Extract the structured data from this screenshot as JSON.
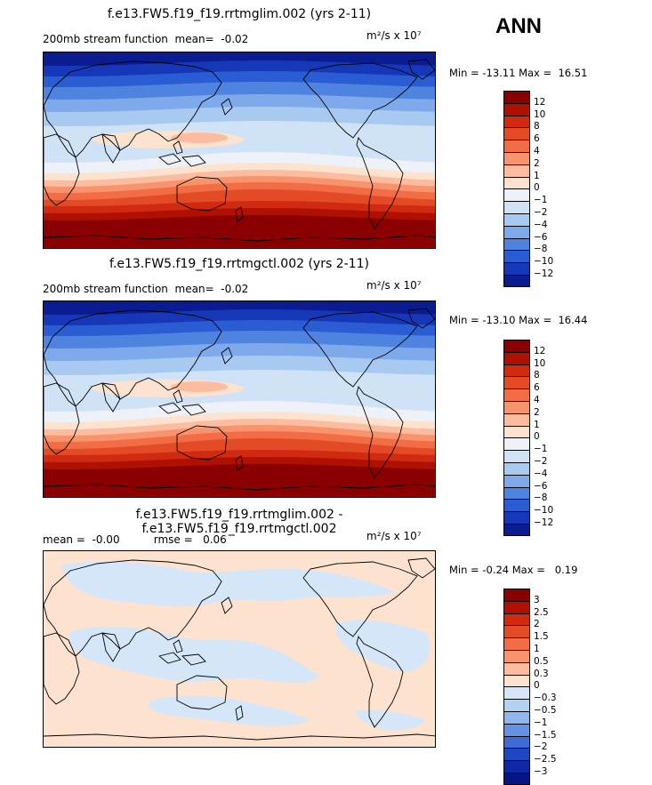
{
  "season": "ANN",
  "panels": [
    {
      "title": "f.e13.FW5.f19_f19.rrtmglim.002 (yrs 2-11)",
      "stat_left": "200mb stream function  mean=  -0.02",
      "units": "m²/s x 10⁷",
      "minmax": "Min = -13.11 Max =  16.51",
      "field": "full"
    },
    {
      "title": "f.e13.FW5.f19_f19.rrtmgctl.002 (yrs 2-11)",
      "stat_left": "200mb stream function  mean=  -0.02",
      "units": "m²/s x 10⁷",
      "minmax": "Min = -13.10 Max =  16.44",
      "field": "full"
    },
    {
      "title": "f.e13.FW5.f19_f19.rrtmglim.002 - f.e13.FW5.f19_f19.rrtmgctl.002",
      "stat_left": "mean =  -0.00          rmse =   0.06",
      "units": "m²/s x 10⁷",
      "minmax": "Min = -0.24 Max =   0.19",
      "field": "diff"
    }
  ],
  "colorbars": {
    "full": {
      "labels": [
        "12",
        "10",
        "8",
        "6",
        "4",
        "2",
        "1",
        "0",
        "-1",
        "-2",
        "-4",
        "-6",
        "-8",
        "-10",
        "-12"
      ],
      "colors": [
        "#8a0000",
        "#b01000",
        "#d02a10",
        "#e34a26",
        "#f26d45",
        "#f7946d",
        "#fbbca0",
        "#fde3cf",
        "#eef2f8",
        "#cfe2f6",
        "#a8c9f0",
        "#7ea9ea",
        "#4f83e0",
        "#2a5cd3",
        "#1638b8",
        "#0a1c8f"
      ]
    },
    "diff": {
      "labels": [
        "3",
        "2.5",
        "2",
        "1.5",
        "1",
        "0.5",
        "0.3",
        "0",
        "-0.3",
        "-0.5",
        "-1",
        "-1.5",
        "-2",
        "-2.5",
        "-3"
      ],
      "colors": [
        "#8a0000",
        "#b01000",
        "#d02a10",
        "#e34a26",
        "#f26d45",
        "#f7946d",
        "#fbbca0",
        "#fde3cf",
        "#d4e6f8",
        "#b3d1f3",
        "#8fb6ee",
        "#6592e4",
        "#3f6bd8",
        "#2146c4",
        "#0f28a3",
        "#061585"
      ]
    }
  }
}
